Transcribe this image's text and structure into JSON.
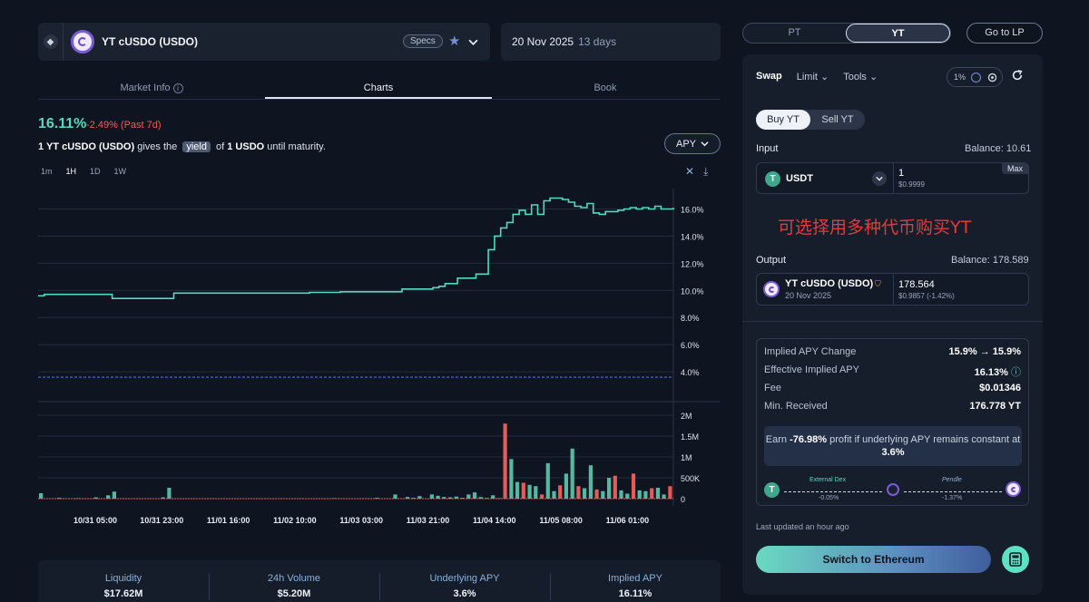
{
  "market": {
    "title": "YT cUSDO (USDO)",
    "specs_label": "Specs",
    "date": "20 Nov 2025",
    "days_left": "13 days"
  },
  "tabs": [
    {
      "label": "Market Info"
    },
    {
      "label": "Charts"
    },
    {
      "label": "Book"
    }
  ],
  "chart_header": {
    "apy": "16.11%",
    "change": "-2.49% (Past 7d)",
    "desc_prefix": "1 YT cUSDO (USDO)",
    "desc_gives": "gives the",
    "desc_yield": "yield",
    "desc_of": "of",
    "desc_asset": "1 USDO",
    "desc_suffix": "until maturity.",
    "metric_select": "APY",
    "timeframes": [
      "1m",
      "1H",
      "1D",
      "1W"
    ],
    "active_timeframe": "1H"
  },
  "chart_data": {
    "type": "line",
    "y_ticks": [
      "16.0%",
      "14.0%",
      "12.0%",
      "10.0%",
      "8.0%",
      "6.0%",
      "4.0%"
    ],
    "volume_ticks": [
      "2M",
      "1.5M",
      "1M",
      "500K",
      "0"
    ],
    "x_ticks": [
      "10/31 05:00",
      "10/31 23:00",
      "11/01 16:00",
      "11/02 10:00",
      "11/03 03:00",
      "11/03 21:00",
      "11/04 14:00",
      "11/05 08:00",
      "11/06 01:00"
    ],
    "ylim": [
      2.0,
      17.5
    ],
    "reference_line": 3.6,
    "series": [
      {
        "name": "",
        "values": [
          9.6,
          9.7,
          9.7,
          9.7,
          9.7,
          9.7,
          9.7,
          9.7,
          9.7,
          9.7,
          9.7,
          9.7,
          9.4,
          9.4,
          9.4,
          9.4,
          9.4,
          9.4,
          9.4,
          9.4,
          9.4,
          9.4,
          9.8,
          9.8,
          9.8,
          9.8,
          9.8,
          9.8,
          9.8,
          9.8,
          9.8,
          9.8,
          9.8,
          9.8,
          9.8,
          9.8,
          9.8,
          9.8,
          9.8,
          9.8,
          9.8,
          9.8,
          9.8,
          9.8,
          9.85,
          9.85,
          9.85,
          9.85,
          9.85,
          9.9,
          9.9,
          9.9,
          9.9,
          9.9,
          9.9,
          9.9,
          9.9,
          9.9,
          9.9,
          10.1,
          10.1,
          10.1,
          10.1,
          10.1,
          10.2,
          10.3,
          10.5,
          10.5,
          10.9,
          10.9,
          10.9,
          11.2,
          11.2,
          13.0,
          14.0,
          14.6,
          15.0,
          15.6,
          15.9,
          15.6,
          16.3,
          15.6,
          16.6,
          16.8,
          16.8,
          16.7,
          16.5,
          16.2,
          16.1,
          16.4,
          15.7,
          15.6,
          15.8,
          15.8,
          15.9,
          16.0,
          16.1,
          16.0,
          16.1,
          16.0,
          16.2,
          16.0,
          16.0,
          16.1
        ]
      },
      {
        "name": "",
        "values": [
          0.13,
          0,
          0,
          0.02,
          0,
          0,
          0.01,
          0,
          0,
          0.03,
          0,
          0.08,
          0.17,
          0,
          0,
          0,
          0,
          0,
          0,
          0,
          0.03,
          0.26,
          0,
          0,
          0,
          0,
          0,
          0,
          0,
          0,
          0,
          0,
          0,
          0,
          0,
          0,
          0,
          0,
          0,
          0,
          0,
          0,
          0,
          0,
          0,
          0,
          0,
          0,
          0.01,
          0,
          0,
          0,
          0,
          0,
          0,
          0.02,
          0,
          0,
          0.1,
          0,
          0.04,
          0.02,
          0.06,
          0,
          0.1,
          0.07,
          0.04,
          0.03,
          0.05,
          0.02,
          0.1,
          0.15,
          0.04,
          0.02,
          0.08,
          0.01,
          1.8,
          0.95,
          0.4,
          0.38,
          0.33,
          0.3,
          0.1,
          0.85,
          0.18,
          0.32,
          0.6,
          1.2,
          0.3,
          0.25,
          0.8,
          0.22,
          0.18,
          0.5,
          0.55,
          0.2,
          0.12,
          0.6,
          0.2,
          0.18,
          0.25,
          0.26,
          0.1,
          0.3
        ]
      }
    ]
  },
  "stats": [
    {
      "label": "Liquidity",
      "value": "$17.62M"
    },
    {
      "label": "24h Volume",
      "value": "$5.20M"
    },
    {
      "label": "Underlying APY",
      "value": "3.6%"
    },
    {
      "label": "Implied APY",
      "value": "16.11%"
    }
  ],
  "right": {
    "pt_label": "PT",
    "yt_label": "YT",
    "go_lp": "Go to LP",
    "swap": "Swap",
    "limit": "Limit",
    "tools": "Tools",
    "slippage": "1%",
    "buy_yt": "Buy YT",
    "sell_yt": "Sell YT",
    "input_label": "Input",
    "input_balance": "Balance: 10.61",
    "input_token": "USDT",
    "input_amount": "1",
    "input_usd": "$0.9999",
    "max_label": "Max",
    "note_cn": "可选择用多种代币购买YT",
    "output_label": "Output",
    "output_balance": "Balance: 178.589",
    "output_token": "YT cUSDO (USDO)",
    "output_date": "20 Nov 2025",
    "output_amount": "178.564",
    "output_usd": "$0.9857 (-1.42%)",
    "details": [
      {
        "label": "Implied APY Change",
        "value": "15.9% → 15.9%"
      },
      {
        "label": "Effective Implied APY",
        "value": "16.13%"
      },
      {
        "label": "Fee",
        "value": "$0.01346"
      },
      {
        "label": "Min. Received",
        "value": "176.778 YT"
      }
    ],
    "earn_prefix": "Earn",
    "earn_value": "-76.98%",
    "earn_mid": "profit if underlying APY remains constant at",
    "earn_apy": "3.6%",
    "route_dex": "External Dex",
    "route_dex_pct": "-0.05%",
    "route_pendle": "Pendle",
    "route_pendle_pct": "-1.37%",
    "updated": "Last updated an hour ago",
    "switch_btn": "Switch to Ethereum"
  },
  "colors": {
    "line": "#54d8c0",
    "bar_up": "#54b8a2",
    "bar_down": "#e25d58",
    "ref_line": "#4a6ee0",
    "note": "#e23b3b"
  },
  "icons": {
    "eth": "ethereum-icon",
    "star": "star-icon",
    "chevron": "chevron-down-icon",
    "gear": "gear-icon",
    "refresh": "refresh-icon",
    "calculator": "calculator-icon"
  }
}
